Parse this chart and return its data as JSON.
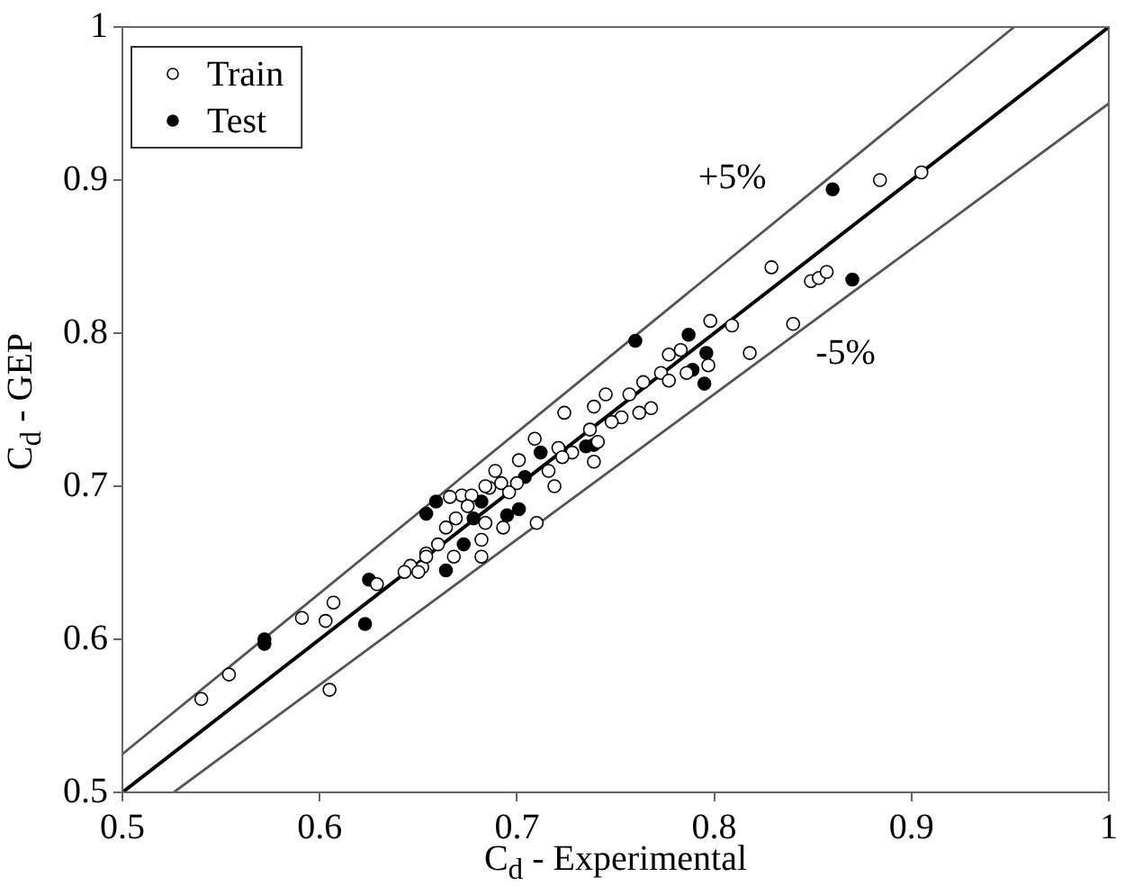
{
  "chart_data": {
    "type": "scatter",
    "xlabel": "C$_{d}$ - Experimental",
    "ylabel": "C$_{d}$ - GEP",
    "xlim": [
      0.5,
      1
    ],
    "xticks": [
      0.5,
      0.6,
      0.7,
      0.8,
      0.9,
      1
    ],
    "ylim": [
      0.5,
      1
    ],
    "yticks": [
      0.5,
      0.6,
      0.7,
      0.8,
      0.9,
      1
    ],
    "grid": false,
    "legend": "top left",
    "series": [
      {
        "name": "Train",
        "color": "#000000",
        "marker": "circle",
        "x": [
          0.54,
          0.554,
          0.591,
          0.607,
          0.603,
          0.605,
          0.629,
          0.646,
          0.643,
          0.652,
          0.654,
          0.686,
          0.7,
          0.724,
          0.739,
          0.745,
          0.757,
          0.764,
          0.773,
          0.768,
          0.762,
          0.753,
          0.748,
          0.737,
          0.741,
          0.739,
          0.728,
          0.721,
          0.723,
          0.719,
          0.709,
          0.701,
          0.689,
          0.692,
          0.696,
          0.716,
          0.71,
          0.684,
          0.672,
          0.677,
          0.666,
          0.675,
          0.669,
          0.664,
          0.684,
          0.693,
          0.682,
          0.66,
          0.654,
          0.65,
          0.668,
          0.682,
          0.829,
          0.849,
          0.853,
          0.857,
          0.798,
          0.809,
          0.84,
          0.818,
          0.777,
          0.783,
          0.797,
          0.786,
          0.777,
          0.884,
          0.905
        ],
        "values": [
          0.561,
          0.577,
          0.614,
          0.624,
          0.612,
          0.567,
          0.636,
          0.648,
          0.644,
          0.647,
          0.656,
          0.699,
          0.702,
          0.748,
          0.752,
          0.76,
          0.76,
          0.768,
          0.774,
          0.751,
          0.748,
          0.745,
          0.742,
          0.737,
          0.729,
          0.716,
          0.722,
          0.725,
          0.719,
          0.7,
          0.731,
          0.717,
          0.71,
          0.702,
          0.696,
          0.71,
          0.676,
          0.7,
          0.694,
          0.694,
          0.693,
          0.687,
          0.679,
          0.673,
          0.676,
          0.673,
          0.665,
          0.662,
          0.654,
          0.644,
          0.654,
          0.654,
          0.843,
          0.834,
          0.836,
          0.84,
          0.808,
          0.805,
          0.806,
          0.787,
          0.786,
          0.789,
          0.779,
          0.774,
          0.769,
          0.9,
          0.905
        ]
      },
      {
        "name": "Test",
        "color": "#000000",
        "marker": "circle",
        "x": [
          0.572,
          0.572,
          0.625,
          0.623,
          0.659,
          0.654,
          0.682,
          0.678,
          0.673,
          0.664,
          0.695,
          0.701,
          0.704,
          0.712,
          0.735,
          0.739,
          0.76,
          0.787,
          0.796,
          0.789,
          0.795,
          0.87,
          0.86
        ],
        "values": [
          0.597,
          0.6,
          0.639,
          0.61,
          0.69,
          0.682,
          0.69,
          0.679,
          0.662,
          0.645,
          0.681,
          0.685,
          0.706,
          0.722,
          0.726,
          0.727,
          0.795,
          0.799,
          0.787,
          0.776,
          0.767,
          0.835,
          0.894
        ]
      },
      {
        "type": "line",
        "color": "#000000",
        "x": [
          0.5,
          1
        ],
        "values": [
          0.5,
          1
        ],
        "line_style": "solid",
        "marker": "none"
      },
      {
        "name": "+5%",
        "type": "line",
        "color": "#555555",
        "x": [
          0.5,
          0.952
        ],
        "values": [
          0.525,
          1
        ],
        "line_style": "solid",
        "marker": "none"
      },
      {
        "name": "-5%",
        "type": "line",
        "color": "#555555",
        "x": [
          0.526,
          1
        ],
        "values": [
          0.5,
          0.95
        ],
        "line_style": "solid",
        "marker": "none"
      }
    ]
  }
}
